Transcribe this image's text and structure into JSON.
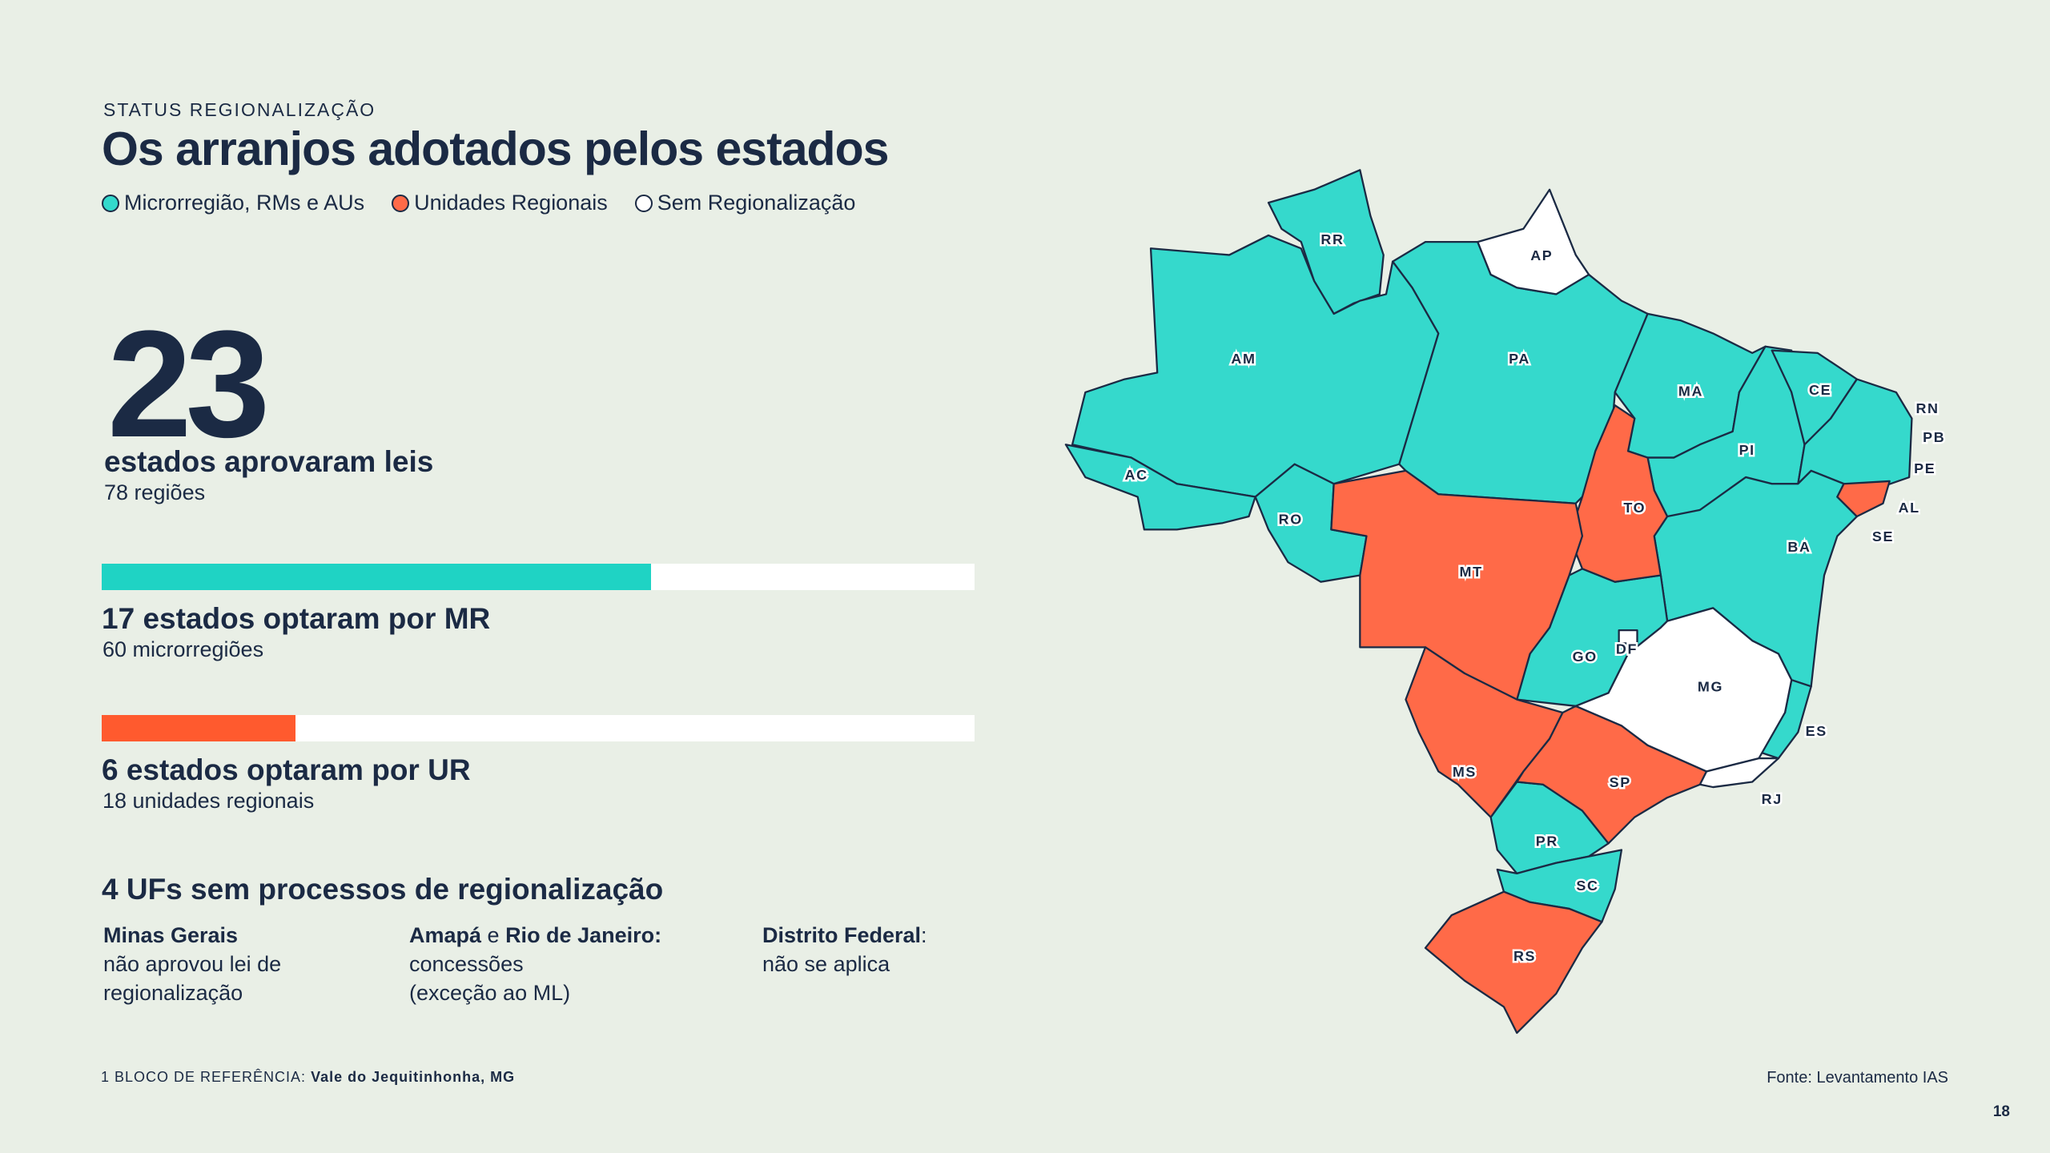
{
  "header": {
    "kicker": "STATUS REGIONALIZAÇÃO",
    "title": "Os arranjos adotados pelos estados"
  },
  "legend": [
    {
      "label": "Microrregião, RMs e AUs",
      "color": "#33d9cc"
    },
    {
      "label": "Unidades Regionais",
      "color": "#ff6a48"
    },
    {
      "label": "Sem Regionalização",
      "color": "#ffffff"
    }
  ],
  "headline": {
    "count": 23,
    "label": "estados aprovaram leis",
    "sub": "78 regiões"
  },
  "stats": [
    {
      "count": 17,
      "label": "estados optaram por MR",
      "sub": "60 microrregiões",
      "color": "#1fd3c4"
    },
    {
      "count": 6,
      "label": "estados optaram por UR",
      "sub": "18 unidades regionais",
      "color": "#ff5a2e"
    }
  ],
  "none": {
    "count": 4,
    "label": "UFs sem processos de regionalização",
    "items": [
      {
        "title": [
          "Minas Gerais"
        ],
        "text": [
          "não aprovou lei de",
          "regionalização"
        ]
      },
      {
        "title": [
          "Amapá",
          " e ",
          "Rio de Janeiro:"
        ],
        "text": [
          "concessões",
          "(exceção ao ML)"
        ]
      },
      {
        "title": [
          "Distrito Federal",
          ":"
        ],
        "text": [
          "não se aplica"
        ]
      }
    ]
  },
  "map": {
    "states": [
      "RR",
      "AP",
      "AM",
      "PA",
      "MA",
      "CE",
      "RN",
      "PB",
      "PE",
      "AL",
      "SE",
      "PI",
      "TO",
      "BA",
      "AC",
      "RO",
      "MT",
      "GO",
      "DF",
      "MG",
      "ES",
      "RJ",
      "MS",
      "SP",
      "PR",
      "SC",
      "RS"
    ]
  },
  "footnote": {
    "label": "1 BLOCO DE REFERÊNCIA:",
    "value": "Vale do Jequitinhonha, MG"
  },
  "source": "Fonte: Levantamento IAS",
  "page": 18
}
